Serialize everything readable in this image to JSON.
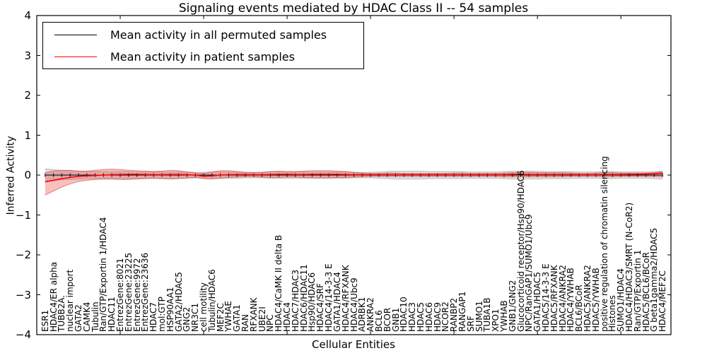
{
  "title": "Signaling events mediated by HDAC Class II -- 54 samples",
  "legend": {
    "items": [
      {
        "label": "Mean activity in all permuted samples",
        "color": "#000000"
      },
      {
        "label": "Mean activity in patient samples",
        "color": "#ff0000"
      }
    ],
    "position": "upper left"
  },
  "colors": {
    "axis": "#000000",
    "permuted_line": "#000000",
    "patient_line": "#ff0000",
    "permuted_band_fill": "rgba(130,130,130,0.28)",
    "permuted_band_edge": "rgba(130,130,130,0.40)",
    "patient_band_fill": "rgba(235,45,45,0.30)",
    "patient_band_edge": "rgba(215,40,40,0.55)"
  },
  "chart_data": {
    "type": "line",
    "title": "Signaling events mediated by HDAC Class II -- 54 samples",
    "xlabel": "Cellular Entities",
    "ylabel": "Inferred Activity",
    "ylim": [
      -4,
      4
    ],
    "yticks": [
      -4,
      -3,
      -2,
      -1,
      0,
      1,
      2,
      3,
      4
    ],
    "xticks_data": [
      10,
      20,
      30,
      40,
      50,
      60,
      70
    ],
    "grid": false,
    "legend_position": "upper left",
    "categories": [
      "ESR1",
      "HDAC4/ER alpha",
      "TUBB2A.",
      "nuclear import",
      "GATA2",
      "CAMK4",
      "Tubulin",
      "Ran/GTP/Exportin 1/HDAC4",
      "HDAC11",
      "EntrezGene:8021",
      "EntrezGene:23225",
      "EntrezGene:9972",
      "EntrezGene:23636",
      "HDAC7",
      "mol:GTP",
      "HSP90AA1",
      "GATA2/HDAC5",
      "GNG2",
      "NR3C1",
      "cell motility",
      "Tubulin/HDAC6",
      "MEF2C",
      "YWHAE",
      "GATA1",
      "RAN",
      "RFXANK",
      "UBE2I",
      "NPC",
      "HDAC4/CaMK II delta B",
      "HDAC4",
      "HDAC7/HDAC3",
      "HDAC6/HDAC11",
      "Hsp90/HDAC6",
      "HDAC4/SRF",
      "HDAC4/14-3-3 E",
      "GATA1/HDAC4",
      "HDAC4/RFXANK",
      "HDAC4/Ubc9",
      "ADRBK1",
      "ANKRA2",
      "BCL6",
      "BCOR",
      "GNB1",
      "HDAC10",
      "HDAC3",
      "HDAC5",
      "HDAC6",
      "HDAC9",
      "NCOR2",
      "RANBP2",
      "RANGAP1",
      "SRF",
      "SUMO1",
      "TUBA1B",
      "XPO1",
      "YWHAB",
      "GNB1/GNG2",
      "Glucocorticoid receptor/Hsp90/HDAC6",
      "NPC/RanGAP1/SUMO1/Ubc9",
      "GATA1/HDAC5",
      "HDAC5/14-3-3 E",
      "HDAC5/RFXANK",
      "HDAC4/ANKRA2",
      "HDAC4/YWHAB",
      "BCL6/BCoR",
      "HDAC5/ANKRA2",
      "HDAC5/YWHAB",
      "positive regulation of chromatin silencing",
      "Histones",
      "SUMO1/HDAC4",
      "HDAC4/HDAC3/SMRT (N-CoR2)",
      "Ran/GTP/Exportin 1",
      "HDAC5/BCL6/BCoR",
      "G beta1gamma2/HDAC5",
      "HDAC4/MEF2C"
    ],
    "series": [
      {
        "name": "Mean activity in all permuted samples",
        "color": "#000000",
        "marker": "tick",
        "values": [
          0,
          0,
          0,
          0,
          0,
          0,
          0,
          0,
          0,
          0,
          0,
          0,
          0,
          0,
          0,
          0,
          0,
          0,
          0,
          0,
          0,
          0,
          0,
          0,
          0,
          0,
          0,
          0,
          0,
          0,
          0,
          0,
          0,
          0,
          0,
          0,
          0,
          0,
          0,
          0,
          0,
          0,
          0,
          0,
          0,
          0,
          0,
          0,
          0,
          0,
          0,
          0,
          0,
          0,
          0,
          0,
          0,
          0,
          0,
          0,
          0,
          0,
          0,
          0,
          0,
          0,
          0,
          0,
          0,
          0,
          0,
          0,
          0,
          0,
          0
        ],
        "band_upper": [
          0.16,
          0.14,
          0.12,
          0.11,
          0.1,
          0.09,
          0.09,
          0.09,
          0.09,
          0.09,
          0.09,
          0.08,
          0.08,
          0.08,
          0.08,
          0.08,
          0.08,
          0.08,
          0.07,
          0.07,
          0.08,
          0.08,
          0.08,
          0.08,
          0.07,
          0.07,
          0.07,
          0.08,
          0.08,
          0.08,
          0.08,
          0.08,
          0.08,
          0.08,
          0.08,
          0.08,
          0.08,
          0.07,
          0.07,
          0.07,
          0.08,
          0.09,
          0.1,
          0.1,
          0.1,
          0.1,
          0.09,
          0.09,
          0.09,
          0.09,
          0.09,
          0.08,
          0.08,
          0.08,
          0.08,
          0.09,
          0.1,
          0.1,
          0.1,
          0.1,
          0.09,
          0.09,
          0.09,
          0.09,
          0.08,
          0.08,
          0.08,
          0.09,
          0.09,
          0.08,
          0.08,
          0.08,
          0.08,
          0.09,
          0.1
        ],
        "band_lower": [
          -0.16,
          -0.14,
          -0.12,
          -0.11,
          -0.1,
          -0.09,
          -0.09,
          -0.09,
          -0.09,
          -0.09,
          -0.09,
          -0.08,
          -0.08,
          -0.08,
          -0.08,
          -0.08,
          -0.08,
          -0.08,
          -0.07,
          -0.07,
          -0.08,
          -0.08,
          -0.08,
          -0.08,
          -0.07,
          -0.07,
          -0.07,
          -0.08,
          -0.08,
          -0.08,
          -0.08,
          -0.08,
          -0.08,
          -0.08,
          -0.08,
          -0.08,
          -0.08,
          -0.07,
          -0.07,
          -0.07,
          -0.08,
          -0.09,
          -0.1,
          -0.1,
          -0.1,
          -0.1,
          -0.09,
          -0.09,
          -0.09,
          -0.09,
          -0.09,
          -0.08,
          -0.08,
          -0.08,
          -0.08,
          -0.09,
          -0.1,
          -0.1,
          -0.1,
          -0.1,
          -0.09,
          -0.09,
          -0.09,
          -0.09,
          -0.08,
          -0.08,
          -0.08,
          -0.09,
          -0.09,
          -0.08,
          -0.08,
          -0.08,
          -0.08,
          -0.09,
          -0.1
        ]
      },
      {
        "name": "Mean activity in patient samples",
        "color": "#ff0000",
        "marker": "none",
        "values": [
          -0.17,
          -0.13,
          -0.09,
          -0.06,
          -0.03,
          -0.02,
          -0.01,
          0,
          0.01,
          0.015,
          0.02,
          0.02,
          0.015,
          0.01,
          0.01,
          0.015,
          0.015,
          0.01,
          0,
          -0.03,
          -0.02,
          0,
          0.01,
          0.015,
          0.015,
          0.01,
          0.01,
          0.015,
          0.02,
          0.02,
          0.015,
          0.015,
          0.02,
          0.02,
          0.02,
          0.02,
          0.015,
          0.01,
          0.01,
          0.01,
          0.01,
          0.01,
          0.01,
          0.01,
          0.01,
          0.01,
          0.01,
          0.01,
          0.01,
          0.01,
          0.01,
          0.01,
          0.01,
          0.01,
          0.01,
          0.01,
          0.02,
          0.02,
          0.015,
          0.015,
          0.015,
          0.015,
          0.015,
          0.015,
          0.01,
          0.01,
          0.01,
          0.015,
          0.015,
          0.015,
          0.02,
          0.02,
          0.025,
          0.035,
          0.05
        ],
        "band_upper": [
          0.06,
          0.1,
          0.12,
          0.12,
          0.1,
          0.1,
          0.12,
          0.14,
          0.15,
          0.14,
          0.12,
          0.11,
          0.1,
          0.09,
          0.1,
          0.12,
          0.11,
          0.08,
          0.05,
          0.04,
          0.08,
          0.11,
          0.11,
          0.09,
          0.07,
          0.06,
          0.07,
          0.09,
          0.1,
          0.09,
          0.09,
          0.1,
          0.11,
          0.11,
          0.11,
          0.1,
          0.09,
          0.07,
          0.05,
          0.04,
          0.04,
          0.05,
          0.05,
          0.04,
          0.04,
          0.04,
          0.04,
          0.04,
          0.04,
          0.05,
          0.05,
          0.04,
          0.04,
          0.04,
          0.04,
          0.05,
          0.06,
          0.07,
          0.07,
          0.06,
          0.06,
          0.06,
          0.06,
          0.05,
          0.04,
          0.04,
          0.05,
          0.06,
          0.06,
          0.05,
          0.05,
          0.05,
          0.05,
          0.06,
          0.08
        ],
        "band_lower": [
          -0.5,
          -0.4,
          -0.3,
          -0.22,
          -0.16,
          -0.13,
          -0.11,
          -0.1,
          -0.1,
          -0.11,
          -0.11,
          -0.1,
          -0.09,
          -0.08,
          -0.09,
          -0.1,
          -0.09,
          -0.07,
          -0.06,
          -0.09,
          -0.1,
          -0.08,
          -0.06,
          -0.05,
          -0.04,
          -0.04,
          -0.05,
          -0.06,
          -0.06,
          -0.05,
          -0.05,
          -0.06,
          -0.07,
          -0.07,
          -0.07,
          -0.06,
          -0.06,
          -0.05,
          -0.04,
          -0.03,
          -0.03,
          -0.03,
          -0.03,
          -0.03,
          -0.03,
          -0.03,
          -0.03,
          -0.03,
          -0.03,
          -0.03,
          -0.03,
          -0.03,
          -0.03,
          -0.03,
          -0.03,
          -0.04,
          -0.04,
          -0.04,
          -0.04,
          -0.04,
          -0.04,
          -0.04,
          -0.04,
          -0.03,
          -0.03,
          -0.03,
          -0.03,
          -0.04,
          -0.04,
          -0.03,
          -0.03,
          -0.03,
          -0.03,
          -0.03,
          -0.04
        ]
      }
    ]
  }
}
